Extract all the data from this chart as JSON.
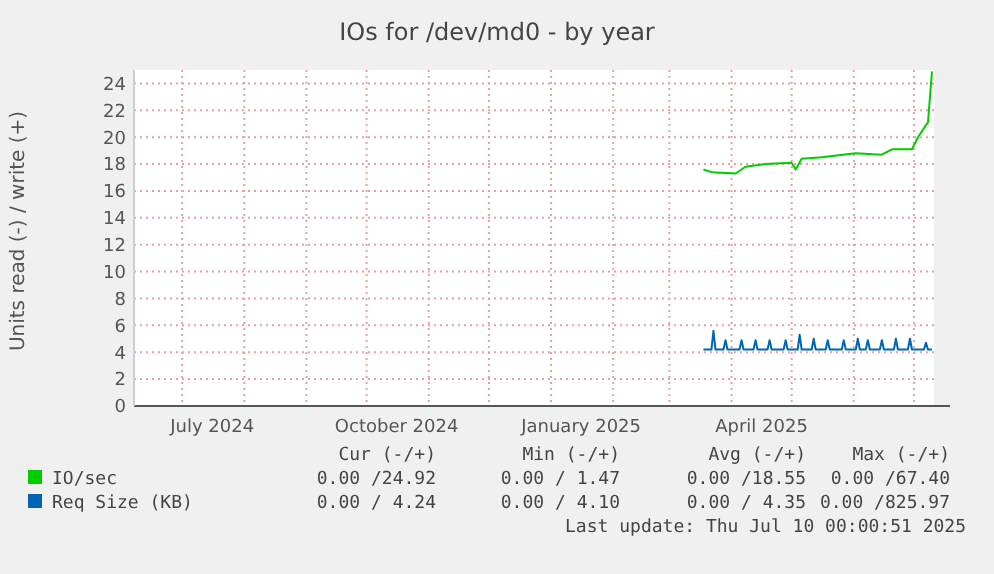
{
  "chart_data": {
    "type": "line",
    "title": "IOs for /dev/md0 - by year",
    "ylabel": "Units read (-) / write (+)",
    "xlim": [
      "2024-06-07",
      "2025-07-11"
    ],
    "xticks": [
      {
        "value": "2024-07-01",
        "label": null
      },
      {
        "value": "2024-07-16",
        "label": "July 2024"
      },
      {
        "value": "2024-08-01",
        "label": null
      },
      {
        "value": "2024-09-01",
        "label": null
      },
      {
        "value": "2024-10-01",
        "label": null
      },
      {
        "value": "2024-10-16",
        "label": "October 2024"
      },
      {
        "value": "2024-11-01",
        "label": null
      },
      {
        "value": "2024-12-01",
        "label": null
      },
      {
        "value": "2025-01-01",
        "label": null
      },
      {
        "value": "2025-01-16",
        "label": "January 2025"
      },
      {
        "value": "2025-02-01",
        "label": null
      },
      {
        "value": "2025-03-01",
        "label": null
      },
      {
        "value": "2025-04-01",
        "label": null
      },
      {
        "value": "2025-04-16",
        "label": "April 2025"
      },
      {
        "value": "2025-05-01",
        "label": null
      },
      {
        "value": "2025-06-01",
        "label": null
      },
      {
        "value": "2025-07-01",
        "label": null
      }
    ],
    "ylim": [
      0,
      25
    ],
    "yticks": [
      0,
      2,
      4,
      6,
      8,
      10,
      12,
      14,
      16,
      18,
      20,
      22,
      24
    ],
    "grid": true,
    "legend": "bottom",
    "series": [
      {
        "name": "IO/sec",
        "color": "#00cc00",
        "x": [
          "2025-03-18",
          "2025-03-22",
          "2025-04-03",
          "2025-04-08",
          "2025-04-18",
          "2025-05-01",
          "2025-05-03",
          "2025-05-06",
          "2025-05-16",
          "2025-06-02",
          "2025-06-15",
          "2025-06-20",
          "2025-06-30",
          "2025-07-03",
          "2025-07-07",
          "2025-07-08",
          "2025-07-10"
        ],
        "values": [
          17.6,
          17.4,
          17.3,
          17.8,
          18.0,
          18.1,
          17.6,
          18.4,
          18.5,
          18.8,
          18.7,
          19.1,
          19.1,
          20.0,
          20.9,
          21.1,
          24.9
        ]
      },
      {
        "name": "Req Size (KB)",
        "color": "#0066b3",
        "x": [
          "2025-03-18",
          "2025-03-22",
          "2025-03-23",
          "2025-03-24",
          "2025-03-28",
          "2025-03-29",
          "2025-03-30",
          "2025-04-05",
          "2025-04-06",
          "2025-04-07",
          "2025-04-12",
          "2025-04-13",
          "2025-04-14",
          "2025-04-19",
          "2025-04-20",
          "2025-04-21",
          "2025-04-27",
          "2025-04-28",
          "2025-04-29",
          "2025-05-04",
          "2025-05-05",
          "2025-05-06",
          "2025-05-11",
          "2025-05-12",
          "2025-05-13",
          "2025-05-18",
          "2025-05-19",
          "2025-05-20",
          "2025-05-26",
          "2025-05-27",
          "2025-05-28",
          "2025-06-02",
          "2025-06-03",
          "2025-06-04",
          "2025-06-07",
          "2025-06-08",
          "2025-06-09",
          "2025-06-14",
          "2025-06-15",
          "2025-06-16",
          "2025-06-21",
          "2025-06-22",
          "2025-06-23",
          "2025-06-28",
          "2025-06-29",
          "2025-06-30",
          "2025-07-06",
          "2025-07-07",
          "2025-07-08",
          "2025-07-10"
        ],
        "values": [
          4.2,
          4.2,
          5.6,
          4.2,
          4.2,
          4.9,
          4.2,
          4.2,
          4.9,
          4.2,
          4.2,
          4.9,
          4.2,
          4.2,
          4.9,
          4.2,
          4.2,
          4.9,
          4.2,
          4.2,
          5.3,
          4.2,
          4.2,
          5.0,
          4.2,
          4.2,
          4.9,
          4.2,
          4.2,
          4.9,
          4.2,
          4.2,
          5.0,
          4.2,
          4.2,
          4.9,
          4.2,
          4.2,
          4.9,
          4.2,
          4.2,
          5.0,
          4.2,
          4.2,
          5.0,
          4.2,
          4.2,
          4.7,
          4.2,
          4.2
        ]
      }
    ],
    "annotations": [
      "Cur (-/+)",
      "Min (-/+)",
      "Avg (-/+)",
      "Max (-/+)",
      "0.00 /24.92",
      "0.00 / 1.47",
      "0.00 /18.55",
      "0.00 /67.40",
      "0.00 / 4.24",
      "0.00 / 4.10",
      "0.00 / 4.35",
      "0.00 /825.97",
      "Last update: Thu Jul 10 00:00:51 2025"
    ]
  }
}
